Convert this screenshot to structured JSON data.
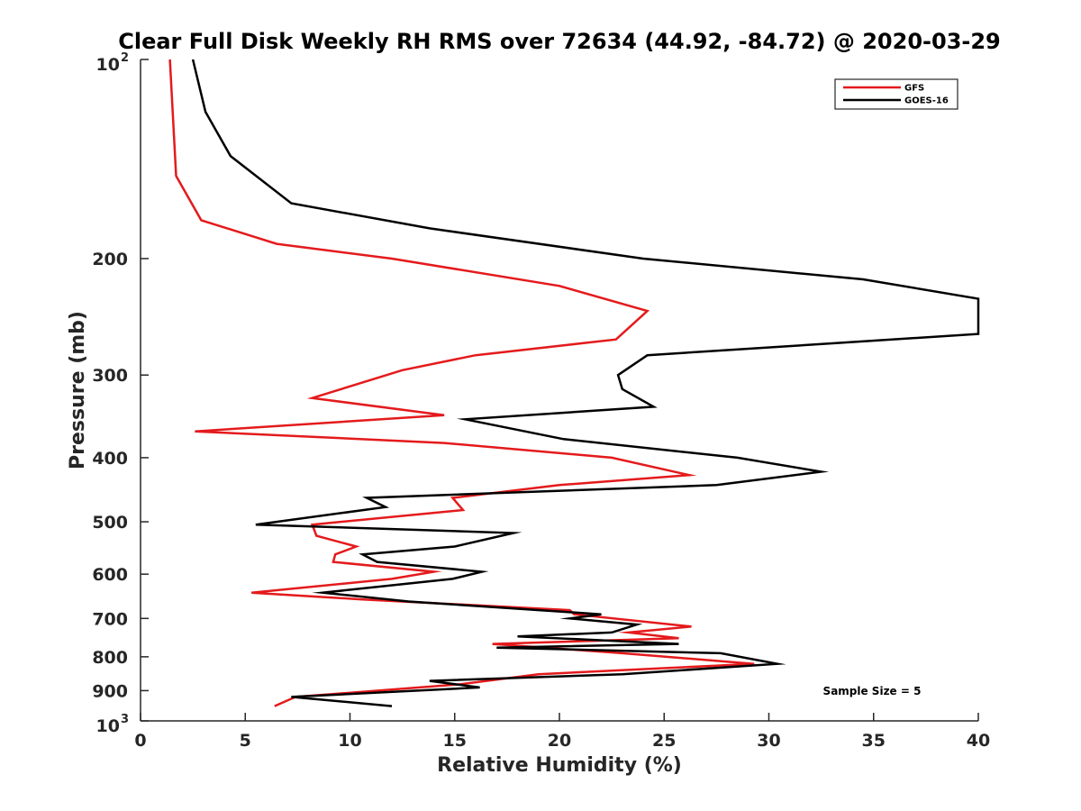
{
  "chart_data": {
    "type": "line",
    "title": "Clear Full Disk Weekly RH RMS over 72634 (44.92, -84.72) @ 2020-03-29",
    "xlabel": "Relative Humidity (%)",
    "ylabel": "Pressure (mb)",
    "xlim": [
      0,
      40
    ],
    "ylim": [
      100,
      1000
    ],
    "yscale": "log",
    "y_reversed": true,
    "grid": false,
    "legend_position": "top-right",
    "x_ticks": [
      0,
      5,
      10,
      15,
      20,
      25,
      30,
      35,
      40
    ],
    "x_tick_labels": [
      "0",
      "5",
      "10",
      "15",
      "20",
      "25",
      "30",
      "35",
      "40"
    ],
    "y_ticks": [
      200,
      300,
      400,
      500,
      600,
      700,
      800,
      900
    ],
    "y_tick_labels": [
      "200",
      "300",
      "400",
      "500",
      "600",
      "700",
      "800",
      "900"
    ],
    "y_end_ticks": [
      {
        "value": 100,
        "base": "10",
        "exp": "2"
      },
      {
        "value": 1000,
        "base": "10",
        "exp": "3"
      }
    ],
    "annotation": "Sample Size = 5",
    "series": [
      {
        "name": "GFS",
        "color": "#e41a1c",
        "points": [
          [
            1.4,
            100
          ],
          [
            1.7,
            150
          ],
          [
            2.9,
            175
          ],
          [
            6.5,
            190
          ],
          [
            12.0,
            200
          ],
          [
            20.0,
            220
          ],
          [
            24.2,
            240
          ],
          [
            22.7,
            265
          ],
          [
            16.0,
            280
          ],
          [
            12.5,
            295
          ],
          [
            8.2,
            325
          ],
          [
            14.5,
            345
          ],
          [
            2.6,
            365
          ],
          [
            14.5,
            380
          ],
          [
            22.5,
            400
          ],
          [
            26.2,
            425
          ],
          [
            20.0,
            440
          ],
          [
            14.9,
            460
          ],
          [
            15.4,
            480
          ],
          [
            8.2,
            505
          ],
          [
            8.4,
            525
          ],
          [
            10.3,
            545
          ],
          [
            9.3,
            560
          ],
          [
            9.2,
            575
          ],
          [
            14.0,
            595
          ],
          [
            12.0,
            610
          ],
          [
            5.3,
            640
          ],
          [
            10.5,
            655
          ],
          [
            20.5,
            680
          ],
          [
            20.7,
            690
          ],
          [
            26.3,
            720
          ],
          [
            23.3,
            735
          ],
          [
            25.7,
            750
          ],
          [
            16.8,
            765
          ],
          [
            23.0,
            790
          ],
          [
            29.3,
            820
          ],
          [
            19.0,
            850
          ],
          [
            15.3,
            880
          ],
          [
            7.4,
            920
          ],
          [
            6.4,
            950
          ]
        ]
      },
      {
        "name": "GOES-16",
        "color": "#000000",
        "points": [
          [
            2.5,
            100
          ],
          [
            3.1,
            120
          ],
          [
            4.3,
            140
          ],
          [
            7.2,
            165
          ],
          [
            13.8,
            180
          ],
          [
            24.0,
            200
          ],
          [
            34.5,
            215
          ],
          [
            40.0,
            230
          ],
          [
            40.0,
            260
          ],
          [
            24.2,
            280
          ],
          [
            22.8,
            300
          ],
          [
            23.0,
            315
          ],
          [
            24.5,
            335
          ],
          [
            15.5,
            350
          ],
          [
            20.2,
            375
          ],
          [
            28.5,
            400
          ],
          [
            32.5,
            420
          ],
          [
            27.5,
            440
          ],
          [
            10.8,
            460
          ],
          [
            11.7,
            475
          ],
          [
            5.5,
            505
          ],
          [
            17.8,
            520
          ],
          [
            15.0,
            545
          ],
          [
            10.6,
            560
          ],
          [
            11.3,
            575
          ],
          [
            16.3,
            595
          ],
          [
            14.9,
            610
          ],
          [
            8.7,
            640
          ],
          [
            12.8,
            660
          ],
          [
            22.0,
            690
          ],
          [
            20.5,
            700
          ],
          [
            23.7,
            715
          ],
          [
            22.5,
            735
          ],
          [
            18.0,
            745
          ],
          [
            25.7,
            765
          ],
          [
            17.0,
            775
          ],
          [
            27.7,
            790
          ],
          [
            30.4,
            820
          ],
          [
            23.0,
            850
          ],
          [
            13.8,
            870
          ],
          [
            16.2,
            890
          ],
          [
            7.2,
            920
          ],
          [
            12.0,
            950
          ]
        ]
      }
    ]
  }
}
